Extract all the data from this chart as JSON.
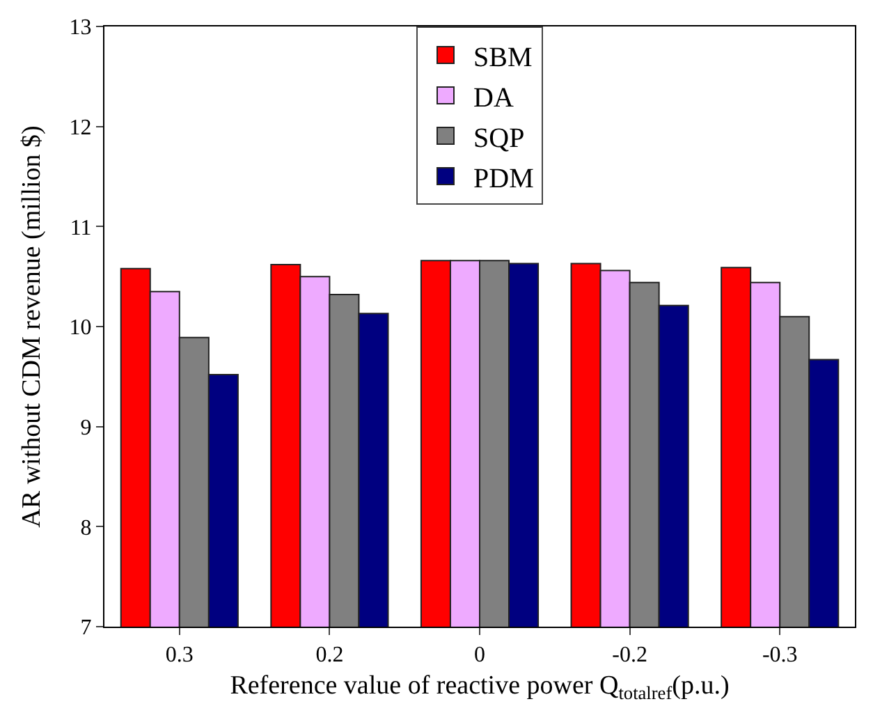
{
  "chart_data": {
    "type": "bar",
    "xlabel": "Reference value of reactive power Q$_{totalref}$(p.u.)",
    "ylabel": "AR without CDM revenue (million $)",
    "categories": [
      "0.3",
      "0.2",
      "0",
      "-0.2",
      "-0.3"
    ],
    "series": [
      {
        "name": "SBM",
        "color": "#ff0000",
        "values": [
          10.58,
          10.62,
          10.66,
          10.63,
          10.59
        ]
      },
      {
        "name": "DA",
        "color": "#eeaaff",
        "values": [
          10.35,
          10.5,
          10.66,
          10.56,
          10.44
        ]
      },
      {
        "name": "SQP",
        "color": "#808080",
        "values": [
          9.89,
          10.32,
          10.66,
          10.44,
          10.1
        ]
      },
      {
        "name": "PDM",
        "color": "#000080",
        "values": [
          9.52,
          10.13,
          10.63,
          10.21,
          9.67
        ]
      }
    ],
    "ylim": [
      7,
      13
    ],
    "yticks": [
      7,
      8,
      9,
      10,
      11,
      12,
      13
    ],
    "legend": "top"
  }
}
